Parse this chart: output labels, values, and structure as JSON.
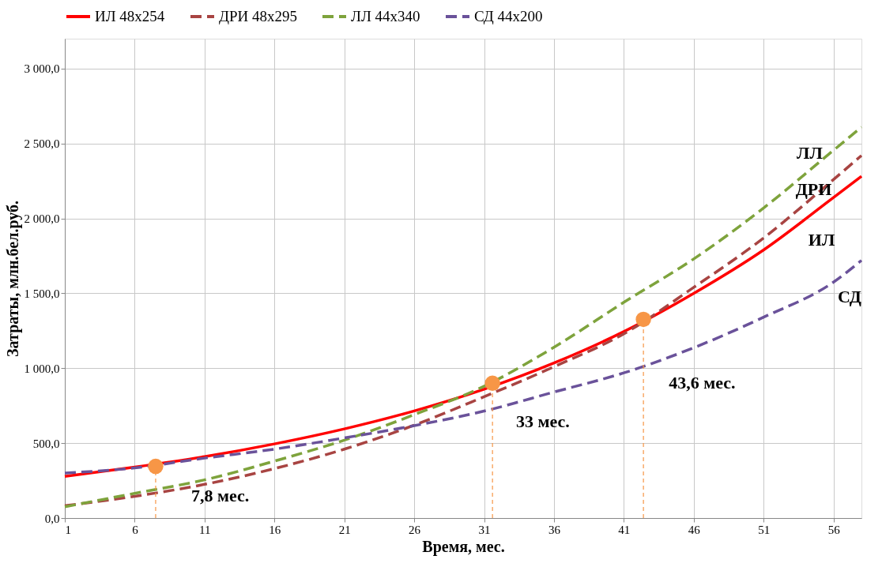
{
  "chart_data": {
    "type": "line",
    "xlabel": "Время, мес.",
    "ylabel": "Затраты, млн.бел.руб.",
    "xlim": [
      1,
      58
    ],
    "xticks": [
      1,
      6,
      11,
      16,
      21,
      26,
      31,
      36,
      41,
      46,
      51,
      56
    ],
    "ylim": [
      0,
      3200
    ],
    "yticks": [
      {
        "value": 0,
        "label": "0,0"
      },
      {
        "value": 500,
        "label": "500,0"
      },
      {
        "value": 1000,
        "label": "1 000,0"
      },
      {
        "value": 1500,
        "label": "1 500,0"
      },
      {
        "value": 2000,
        "label": "2 000,0"
      },
      {
        "value": 2500,
        "label": "2 500,0"
      },
      {
        "value": 3000,
        "label": "3 000,0"
      }
    ],
    "grid": true,
    "legend": "top",
    "series": [
      {
        "name": "ИЛ 48x254",
        "color": "#ff0000",
        "line_style": "solid",
        "x": [
          1,
          6,
          11,
          16,
          21,
          26,
          31,
          36,
          41,
          46,
          51,
          56,
          58
        ],
        "values": [
          278,
          340,
          410,
          495,
          595,
          715,
          860,
          1035,
          1245,
          1500,
          1790,
          2140,
          2282
        ]
      },
      {
        "name": "ДРИ 48x295",
        "color": "#a84442",
        "line_style": "dashed",
        "x": [
          1,
          6,
          11,
          16,
          21,
          26,
          31,
          36,
          41,
          46,
          51,
          56,
          58
        ],
        "values": [
          82,
          145,
          225,
          330,
          460,
          620,
          810,
          1010,
          1230,
          1540,
          1870,
          2260,
          2420
        ]
      },
      {
        "name": "ЛЛ 44x340",
        "color": "#7ea33c",
        "line_style": "dashed",
        "x": [
          1,
          6,
          11,
          16,
          21,
          26,
          31,
          36,
          41,
          46,
          51,
          56,
          58
        ],
        "values": [
          75,
          165,
          255,
          380,
          520,
          690,
          880,
          1140,
          1440,
          1730,
          2070,
          2455,
          2610
        ]
      },
      {
        "name": "СД 44x200",
        "color": "#6a529a",
        "line_style": "dashed",
        "x": [
          1,
          6,
          11,
          16,
          21,
          26,
          31,
          36,
          41,
          46,
          51,
          56,
          58
        ],
        "values": [
          300,
          335,
          400,
          460,
          535,
          617,
          714,
          841,
          969,
          1137,
          1341,
          1575,
          1720
        ]
      },
      {
        "type": "scatter",
        "color": "#f79646",
        "marker": "circle",
        "x": [
          7.5,
          31.6,
          42.4
        ],
        "values": [
          345,
          900,
          1326
        ],
        "errors": [
          [
            0,
            345
          ],
          [
            0,
            900
          ],
          [
            0,
            1326
          ]
        ]
      }
    ],
    "annotations": [
      "7,8 мес.",
      "33 мес.",
      "43,6 мес.",
      "ЛЛ",
      "ДРИ",
      "ИЛ",
      "СД"
    ]
  }
}
